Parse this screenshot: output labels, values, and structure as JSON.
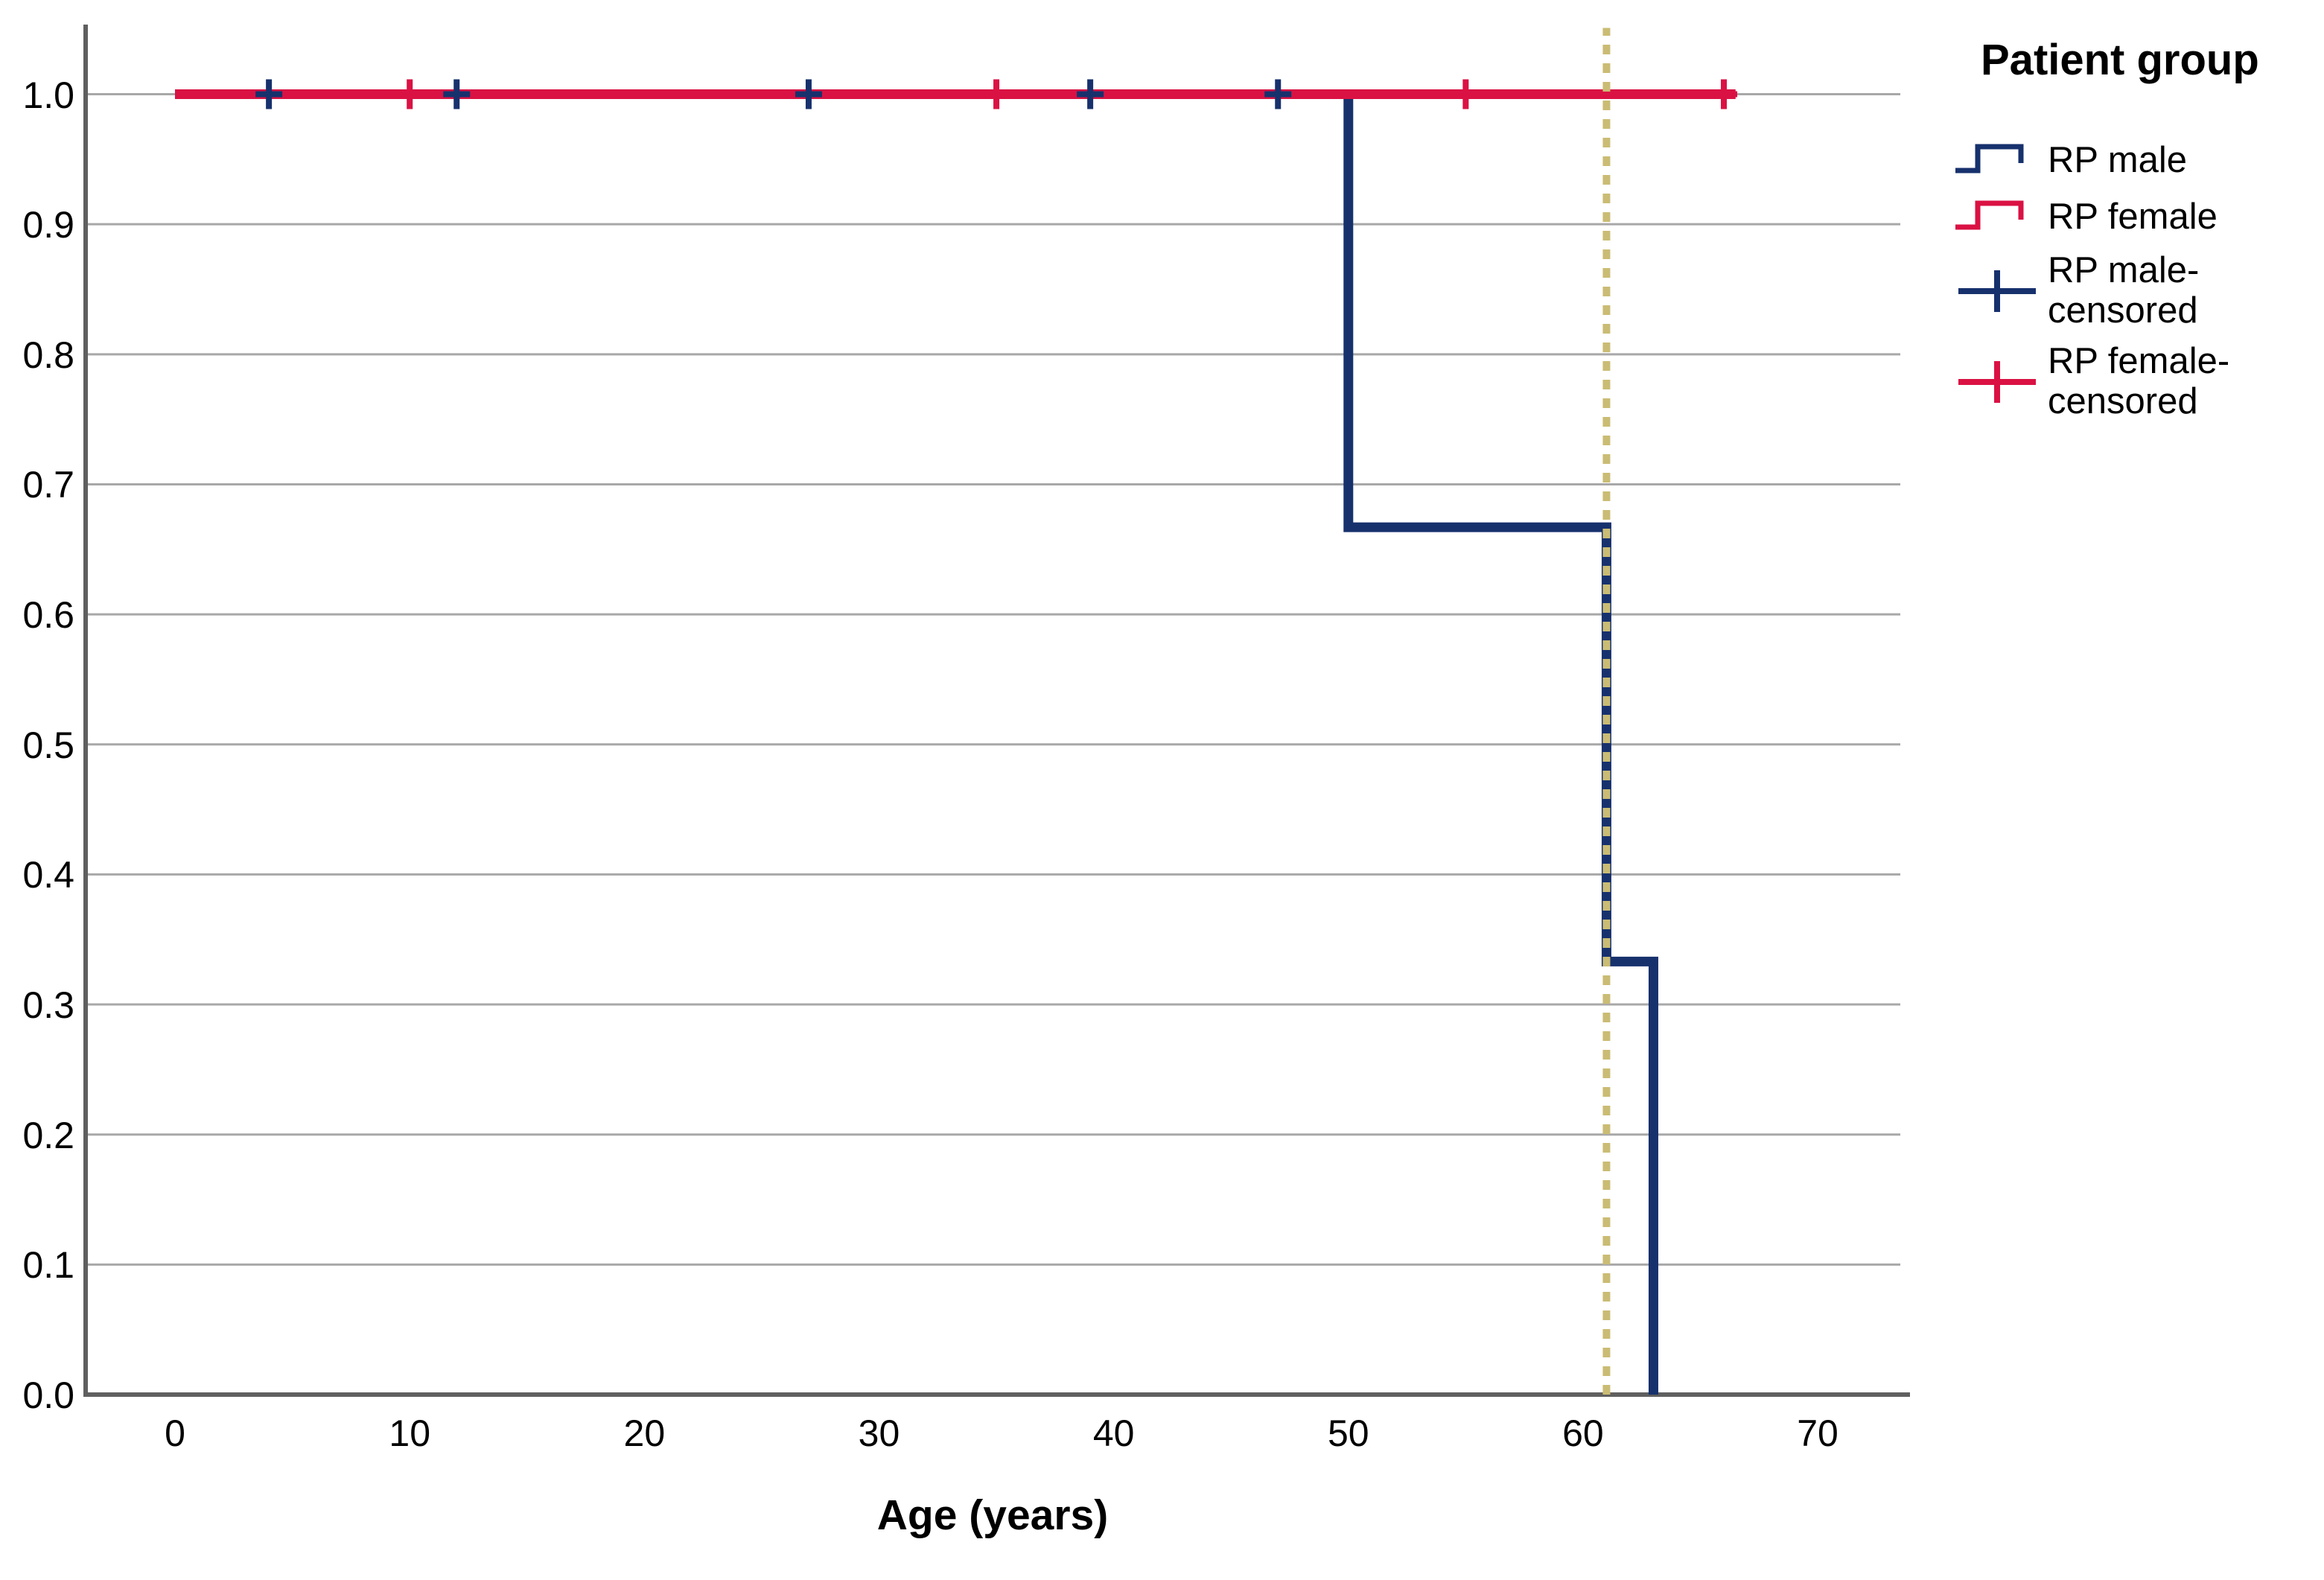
{
  "figure": {
    "kind": "kaplan-meier-survival-plot",
    "background_color": "#ffffff"
  },
  "chart_data": {
    "type": "line",
    "subtype": "step-survival",
    "title": "",
    "xlabel": "Age (years)",
    "ylabel": "",
    "legend_title": "Patient group",
    "legend_position": "right",
    "grid": true,
    "grid_color": "#a8a8a8",
    "axis_color": "#5f5f5f",
    "xlim": [
      -3.81,
      73.52
    ],
    "ylim": [
      0,
      1.061
    ],
    "x_ticks": [
      {
        "v": 0,
        "label": "0"
      },
      {
        "v": 10,
        "label": "10"
      },
      {
        "v": 20,
        "label": "20"
      },
      {
        "v": 30,
        "label": "30"
      },
      {
        "v": 40,
        "label": "40"
      },
      {
        "v": 50,
        "label": "50"
      },
      {
        "v": 60,
        "label": "60"
      },
      {
        "v": 70,
        "label": "70"
      }
    ],
    "y_ticks": [
      {
        "v": 0.0,
        "label": "0.0"
      },
      {
        "v": 0.1,
        "label": "0.1"
      },
      {
        "v": 0.2,
        "label": "0.2"
      },
      {
        "v": 0.3,
        "label": "0.3"
      },
      {
        "v": 0.4,
        "label": "0.4"
      },
      {
        "v": 0.5,
        "label": "0.5"
      },
      {
        "v": 0.6,
        "label": "0.6"
      },
      {
        "v": 0.7,
        "label": "0.7"
      },
      {
        "v": 0.8,
        "label": "0.8"
      },
      {
        "v": 0.9,
        "label": "0.9"
      },
      {
        "v": 1.0,
        "label": "1.0"
      }
    ],
    "reference_line": {
      "x": 61,
      "y_from": 0,
      "y_to": 1.051,
      "color": "#cabc74",
      "width": 10,
      "dash": [
        13,
        12
      ]
    },
    "series": [
      {
        "name": "RP male",
        "color": "#17316d",
        "line_width": 13,
        "step_points": [
          [
            0,
            1.0
          ],
          [
            50,
            1.0
          ],
          [
            50,
            0.667
          ],
          [
            61,
            0.667
          ],
          [
            61,
            0.333
          ],
          [
            63,
            0.333
          ],
          [
            63,
            0.0
          ]
        ],
        "censored": [
          [
            4,
            1.0
          ],
          [
            12,
            1.0
          ],
          [
            27,
            1.0
          ],
          [
            39,
            1.0
          ],
          [
            47,
            1.0
          ]
        ]
      },
      {
        "name": "RP female",
        "color": "#da1243",
        "line_width": 13,
        "step_points": [
          [
            0,
            1.0
          ],
          [
            66.5,
            1.0
          ]
        ],
        "censored": [
          [
            10,
            1.0
          ],
          [
            35,
            1.0
          ],
          [
            55,
            1.0
          ],
          [
            66,
            1.0
          ]
        ]
      }
    ],
    "legend": [
      {
        "label": "RP male",
        "symbol": "step",
        "color": "#17316d"
      },
      {
        "label": "RP female",
        "symbol": "step",
        "color": "#da1243"
      },
      {
        "label": "RP male-censored",
        "symbol": "plus",
        "color": "#17316d"
      },
      {
        "label": "RP female-censored",
        "symbol": "plus",
        "color": "#da1243"
      }
    ]
  }
}
